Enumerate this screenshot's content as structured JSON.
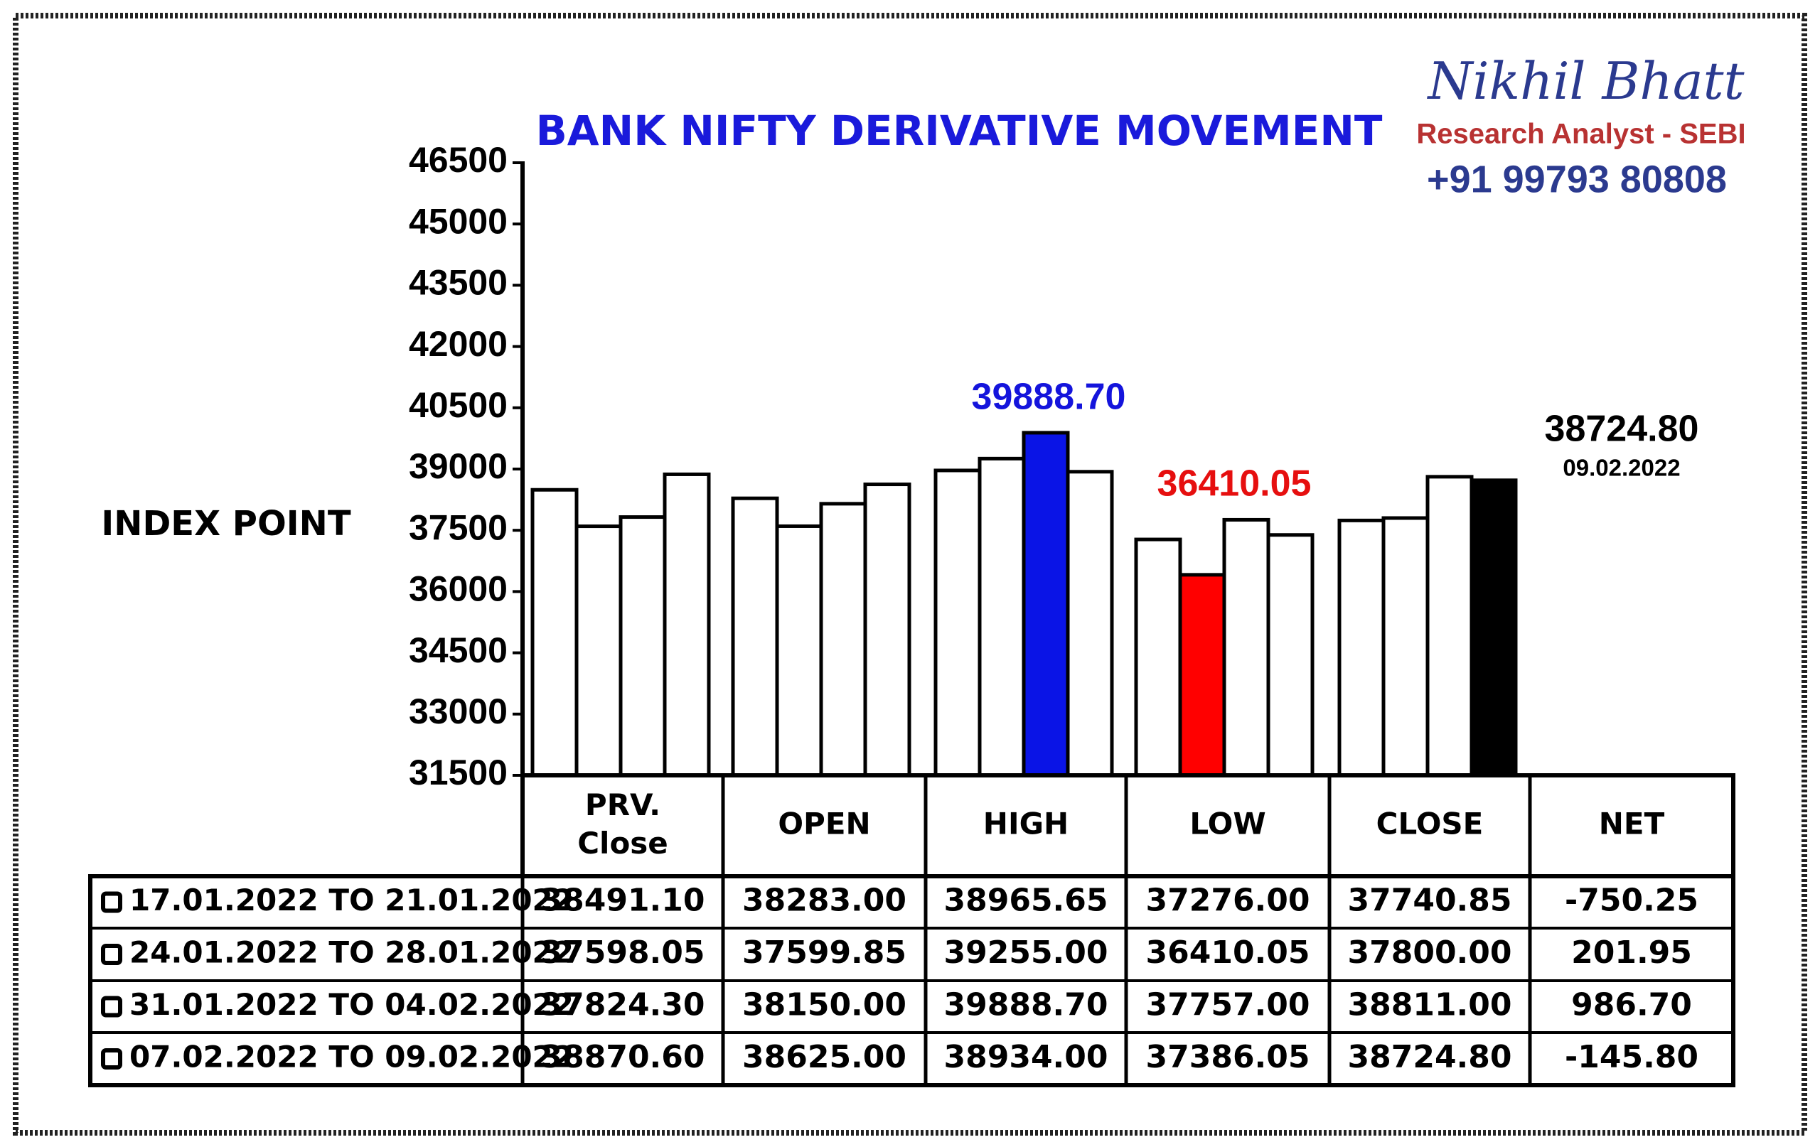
{
  "chart_data": {
    "type": "bar",
    "title": "BANK NIFTY DERIVATIVE MOVEMENT",
    "y_label": "INDEX POINT",
    "branding": {
      "name": "Nikhil Bhatt",
      "role": "Research Analyst - SEBI",
      "phone": "+91 99793 80808"
    },
    "categories": [
      "PRV. Close",
      "OPEN",
      "HIGH",
      "LOW",
      "CLOSE"
    ],
    "net_header": "NET",
    "ylim": [
      31500,
      46500
    ],
    "yticks": [
      31500,
      33000,
      34500,
      36000,
      37500,
      39000,
      40500,
      42000,
      43500,
      45000,
      46500
    ],
    "series": [
      {
        "name": "17.01.2022 TO 21.01.2022",
        "values": [
          38491.1,
          38283,
          38965.65,
          37276,
          37740.85
        ],
        "value_labels": [
          "38491.10",
          "38283.00",
          "38965.65",
          "37276.00",
          "37740.85"
        ],
        "colors": [
          "#ffffff",
          "#ffffff",
          "#ffffff",
          "#ffffff",
          "#ffffff"
        ],
        "net": -750.25,
        "net_label": "-750.25"
      },
      {
        "name": "24.01.2022 TO 28.01.2022",
        "values": [
          37598.05,
          37599.85,
          39255,
          36410.05,
          37800
        ],
        "value_labels": [
          "37598.05",
          "37599.85",
          "39255.00",
          "36410.05",
          "37800.00"
        ],
        "colors": [
          "#ffffff",
          "#ffffff",
          "#ffffff",
          "#ff0000",
          "#ffffff"
        ],
        "net": 201.95,
        "net_label": "201.95"
      },
      {
        "name": "31.01.2022 TO 04.02.2022",
        "values": [
          37824.3,
          38150,
          39888.7,
          37757,
          38811
        ],
        "value_labels": [
          "37824.30",
          "38150.00",
          "39888.70",
          "37757.00",
          "38811.00"
        ],
        "colors": [
          "#ffffff",
          "#ffffff",
          "#0a14e6",
          "#ffffff",
          "#ffffff"
        ],
        "net": 986.7,
        "net_label": "986.70"
      },
      {
        "name": "07.02.2022 TO 09.02.2022",
        "values": [
          38870.6,
          38625,
          38934,
          37386.05,
          38724.8
        ],
        "value_labels": [
          "38870.60",
          "38625.00",
          "38934.00",
          "37386.05",
          "38724.80"
        ],
        "colors": [
          "#ffffff",
          "#ffffff",
          "#ffffff",
          "#ffffff",
          "#000000"
        ],
        "net": -145.8,
        "net_label": "-145.80"
      }
    ],
    "annotations": [
      {
        "value": 39888.7,
        "label": "39888.70",
        "color": "#1414dc"
      },
      {
        "value": 36410.05,
        "label": "36410.05",
        "color": "#e60f0f"
      },
      {
        "value": 38724.8,
        "label": "38724.80",
        "color": "#000000",
        "date": "09.02.2022"
      }
    ]
  }
}
